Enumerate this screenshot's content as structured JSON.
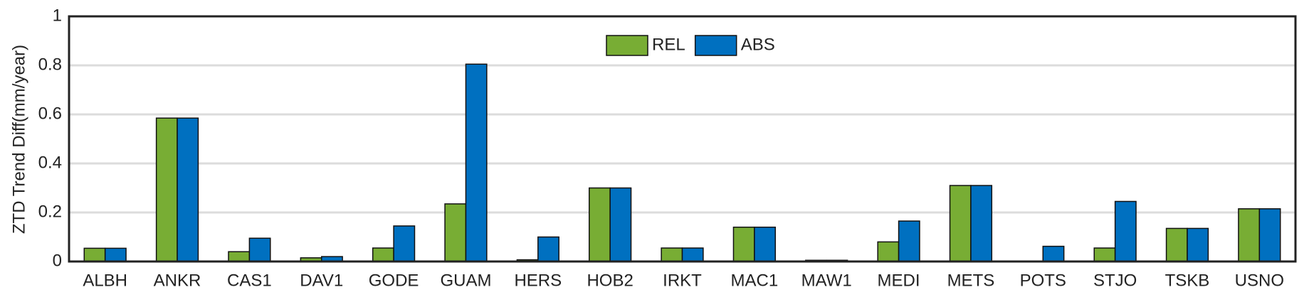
{
  "chart_data": {
    "type": "bar",
    "y_label": "ZTD Trend Diff(mm/year)",
    "categories": [
      "ALBH",
      "ANKR",
      "CAS1",
      "DAV1",
      "GODE",
      "GUAM",
      "HERS",
      "HOB2",
      "IRKT",
      "MAC1",
      "MAW1",
      "MEDI",
      "METS",
      "POTS",
      "STJO",
      "TSKB",
      "USNO"
    ],
    "series": [
      {
        "name": "REL",
        "color": "#78ad34",
        "values": [
          0.054,
          0.585,
          0.04,
          0.015,
          0.055,
          0.235,
          0.007,
          0.3,
          0.055,
          0.14,
          0.005,
          0.08,
          0.31,
          0,
          0.055,
          0.135,
          0.215
        ]
      },
      {
        "name": "ABS",
        "color": "#0070c0",
        "values": [
          0.054,
          0.585,
          0.095,
          0.02,
          0.145,
          0.805,
          0.1,
          0.3,
          0.055,
          0.14,
          0.005,
          0.165,
          0.31,
          0.062,
          0.245,
          0.135,
          0.215
        ]
      }
    ],
    "ylim": [
      0,
      1
    ],
    "yticks": [
      0,
      0.2,
      0.4,
      0.6,
      0.8,
      1
    ],
    "grid": true,
    "legend": "top"
  }
}
